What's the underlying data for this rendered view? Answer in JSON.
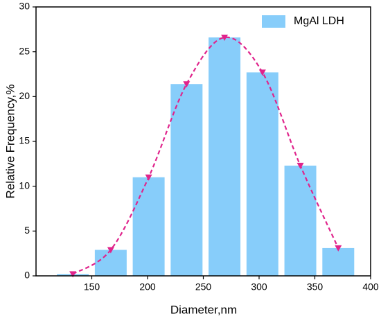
{
  "chart_data": {
    "type": "histogram",
    "xlabel": "Diameter,nm",
    "ylabel": "Relative Frequency,%",
    "bins": [
      116,
      150,
      184,
      218,
      252,
      286,
      320,
      354,
      388
    ],
    "series": [
      {
        "name": "MgAl LDH",
        "color": "#87cdfa",
        "values": [
          0.2,
          2.9,
          11,
          21.4,
          26.6,
          22.7,
          12.3,
          3.1
        ]
      }
    ],
    "fit": {
      "color": "#e0248c",
      "x": [
        133,
        167,
        201,
        235,
        269,
        303,
        337,
        371
      ],
      "values": [
        0.2,
        2.9,
        11,
        21.4,
        26.6,
        22.7,
        12.3,
        3.1
      ]
    },
    "xlim": [
      100,
      400
    ],
    "xticks": [
      150,
      200,
      250,
      300,
      350,
      400
    ],
    "ylim": [
      0,
      30
    ],
    "yticks": [
      0,
      5,
      10,
      15,
      20,
      25,
      30
    ],
    "legend": "top-right"
  }
}
